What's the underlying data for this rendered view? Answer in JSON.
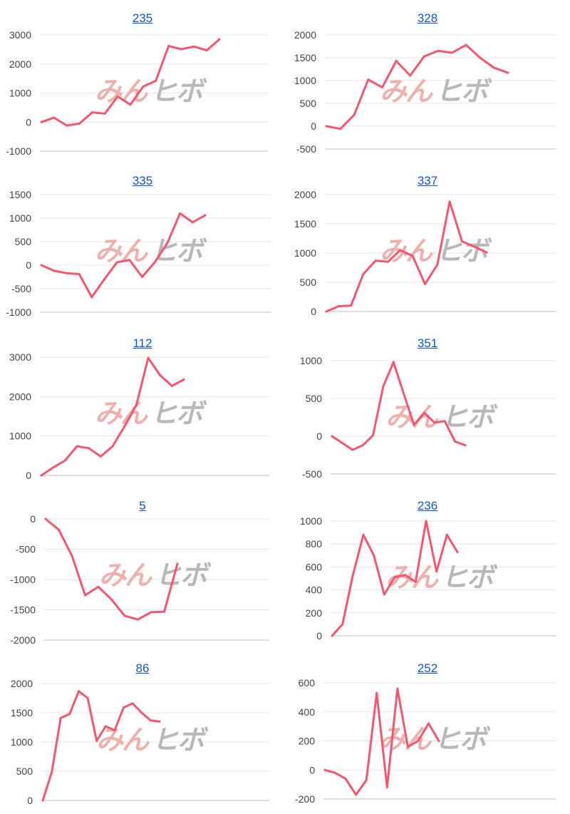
{
  "colors": {
    "line": "#f4566f",
    "title": "#1155cc",
    "grid": "#e4e4e4",
    "watermark_left": "#eeb0ad",
    "watermark_right": "#b8b8b8"
  },
  "watermark": {
    "left": "みん",
    "right": "ヒボ"
  },
  "chart_data": [
    {
      "type": "line",
      "title": "235",
      "ylim": [
        -1000,
        3000
      ],
      "ticks": [
        3000,
        2000,
        1000,
        0,
        -1000
      ],
      "values": [
        0,
        150,
        -120,
        -50,
        330,
        290,
        880,
        600,
        1220,
        1420,
        2620,
        2510,
        2600,
        2470,
        2850
      ]
    },
    {
      "type": "line",
      "title": "328",
      "ylim": [
        -500,
        2000
      ],
      "ticks": [
        2000,
        1500,
        1000,
        500,
        0,
        -500
      ],
      "values": [
        0,
        -60,
        250,
        1020,
        850,
        1430,
        1110,
        1530,
        1650,
        1610,
        1780,
        1500,
        1280,
        1170
      ]
    },
    {
      "type": "line",
      "title": "335",
      "ylim": [
        -1000,
        1500
      ],
      "ticks": [
        1500,
        1000,
        500,
        0,
        -500,
        -1000
      ],
      "values": [
        0,
        -120,
        -170,
        -190,
        -680,
        -300,
        60,
        110,
        -250,
        60,
        470,
        1100,
        910,
        1060
      ]
    },
    {
      "type": "line",
      "title": "337",
      "ylim": [
        0,
        2000
      ],
      "ticks": [
        2000,
        1500,
        1000,
        500,
        0
      ],
      "values": [
        0,
        90,
        100,
        640,
        870,
        850,
        1050,
        950,
        470,
        800,
        1880,
        1200,
        1110,
        1010
      ]
    },
    {
      "type": "line",
      "title": "112",
      "ylim": [
        0,
        3000
      ],
      "ticks": [
        3000,
        2000,
        1000,
        0
      ],
      "values": [
        0,
        200,
        380,
        740,
        690,
        480,
        740,
        1240,
        1780,
        2980,
        2540,
        2270,
        2430
      ]
    },
    {
      "type": "line",
      "title": "351",
      "ylim": [
        -500,
        1000
      ],
      "ticks": [
        1000,
        500,
        0,
        -500
      ],
      "values": [
        0,
        -90,
        -180,
        -120,
        10,
        660,
        980,
        560,
        150,
        310,
        180,
        200,
        -70,
        -120
      ]
    },
    {
      "type": "line",
      "title": "5",
      "ylim": [
        -2000,
        0
      ],
      "ticks": [
        0,
        -500,
        -1000,
        -1500,
        -2000
      ],
      "values": [
        0,
        -180,
        -610,
        -1260,
        -1120,
        -1330,
        -1600,
        -1660,
        -1540,
        -1530,
        -740
      ]
    },
    {
      "type": "line",
      "title": "236",
      "ylim": [
        0,
        1000
      ],
      "ticks": [
        1000,
        800,
        600,
        400,
        200,
        0
      ],
      "values": [
        0,
        100,
        530,
        880,
        700,
        360,
        510,
        530,
        470,
        1000,
        560,
        880,
        730
      ]
    },
    {
      "type": "line",
      "title": "86",
      "ylim": [
        0,
        2000
      ],
      "ticks": [
        2000,
        1500,
        1000,
        500,
        0
      ],
      "values": [
        0,
        480,
        1410,
        1480,
        1870,
        1750,
        1020,
        1270,
        1200,
        1590,
        1660,
        1500,
        1370,
        1350
      ]
    },
    {
      "type": "line",
      "title": "252",
      "ylim": [
        -200,
        600
      ],
      "ticks": [
        600,
        400,
        200,
        0,
        -200
      ],
      "values": [
        0,
        -20,
        -60,
        -170,
        -70,
        530,
        -120,
        560,
        160,
        200,
        320,
        200
      ]
    }
  ]
}
